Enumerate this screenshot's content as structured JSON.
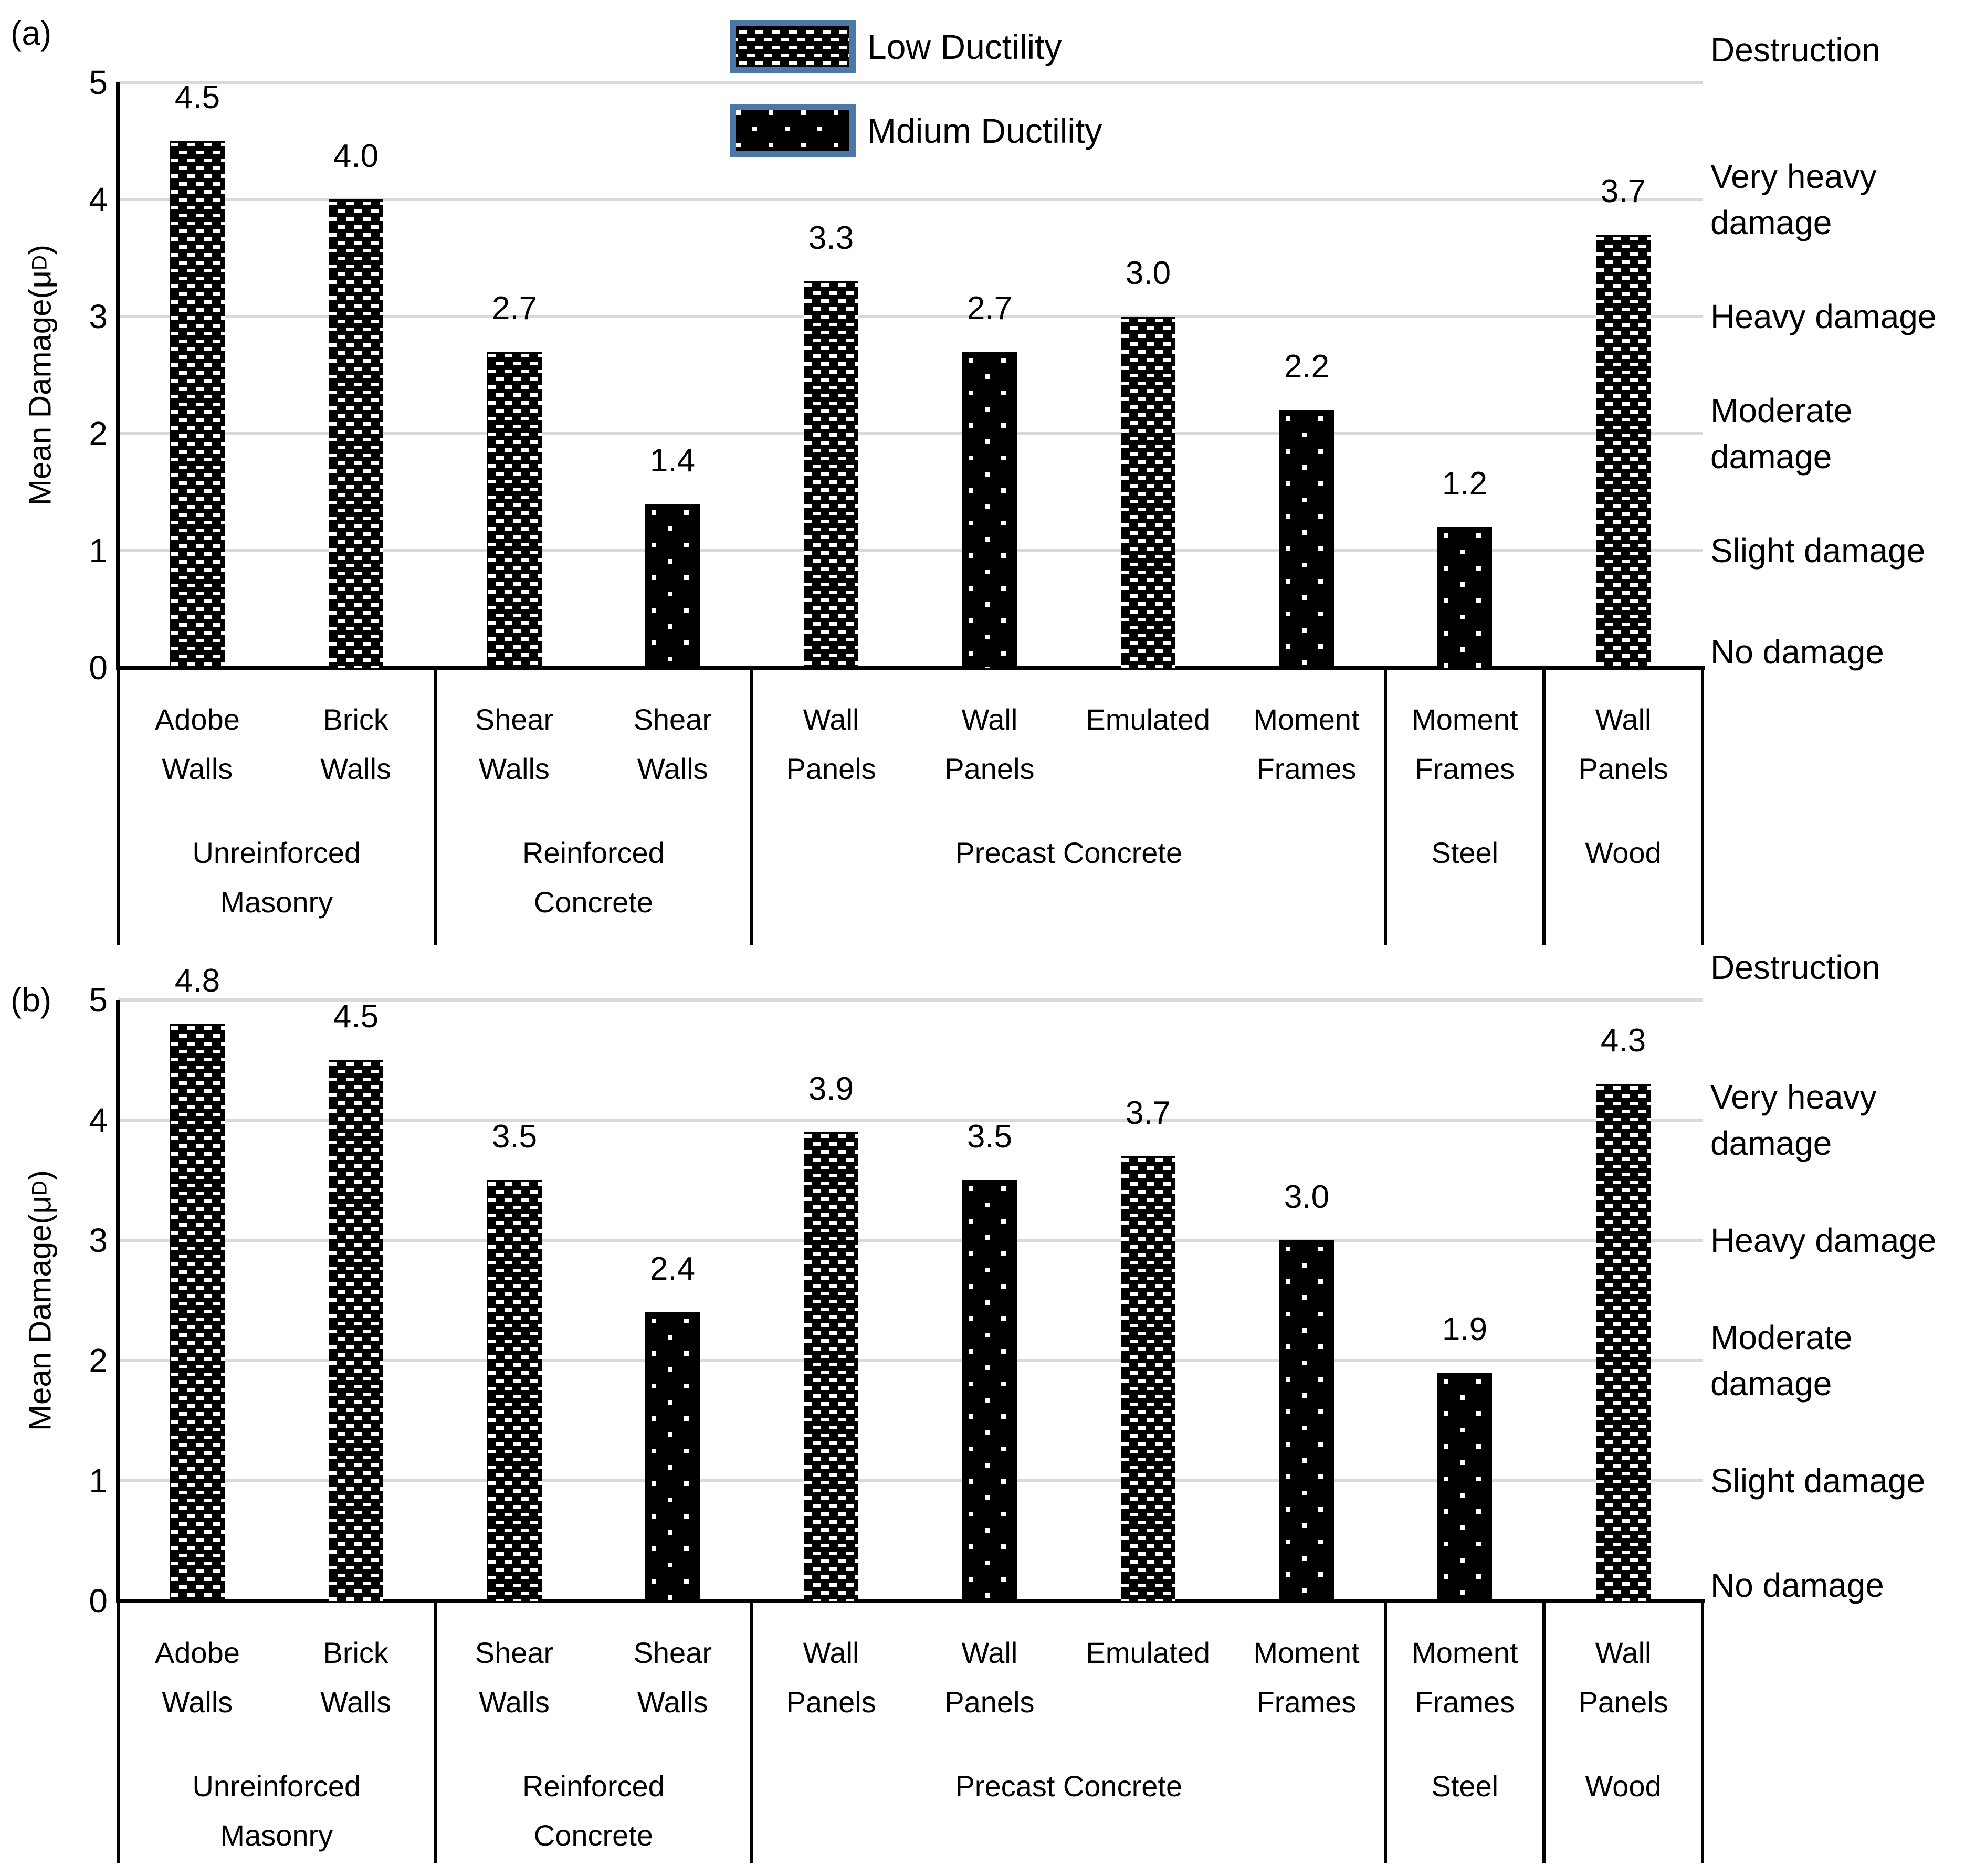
{
  "figure": {
    "y_axis": {
      "title_prefix": "Mean Damage(μ",
      "title_sub": "D",
      "title_suffix": ")",
      "ticks": [
        "0",
        "1",
        "2",
        "3",
        "4",
        "5"
      ],
      "max": 5
    },
    "legend": {
      "items": [
        {
          "label": "Low Ductility",
          "pattern": "checker"
        },
        {
          "label": "Mdium Ductility",
          "pattern": "dots"
        }
      ]
    },
    "damage_scale": [
      {
        "level": 5,
        "lines": [
          "Destruction"
        ]
      },
      {
        "level": 4,
        "lines": [
          "Very heavy",
          "damage"
        ]
      },
      {
        "level": 3,
        "lines": [
          "Heavy damage"
        ]
      },
      {
        "level": 2,
        "lines": [
          "Moderate",
          "damage"
        ]
      },
      {
        "level": 1,
        "lines": [
          "Slight damage"
        ]
      },
      {
        "level": 0,
        "lines": [
          "No damage"
        ]
      }
    ],
    "categories": [
      {
        "lines": [
          "Adobe",
          "Walls"
        ]
      },
      {
        "lines": [
          "Brick",
          "Walls"
        ]
      },
      {
        "lines": [
          "Shear",
          "Walls"
        ]
      },
      {
        "lines": [
          "Shear",
          "Walls"
        ]
      },
      {
        "lines": [
          "Wall",
          "Panels"
        ]
      },
      {
        "lines": [
          "Wall",
          "Panels"
        ]
      },
      {
        "lines": [
          "Emulated"
        ]
      },
      {
        "lines": [
          "Moment",
          "Frames"
        ]
      },
      {
        "lines": [
          "Moment",
          "Frames"
        ]
      },
      {
        "lines": [
          "Wall",
          "Panels"
        ]
      }
    ],
    "groups": [
      {
        "lines": [
          "Unreinforced",
          "Masonry"
        ],
        "span": 2
      },
      {
        "lines": [
          "Reinforced",
          "Concrete"
        ],
        "span": 2
      },
      {
        "lines": [
          "Precast Concrete"
        ],
        "span": 4
      },
      {
        "lines": [
          "Steel"
        ],
        "span": 1
      },
      {
        "lines": [
          "Wood"
        ],
        "span": 1
      }
    ],
    "panels": [
      {
        "tag": "(a)",
        "bars": [
          {
            "value": "4.5",
            "num": 4.5,
            "pattern": "checker"
          },
          {
            "value": "4.0",
            "num": 4.0,
            "pattern": "checker"
          },
          {
            "value": "2.7",
            "num": 2.7,
            "pattern": "checker"
          },
          {
            "value": "1.4",
            "num": 1.4,
            "pattern": "dots"
          },
          {
            "value": "3.3",
            "num": 3.3,
            "pattern": "checker"
          },
          {
            "value": "2.7",
            "num": 2.7,
            "pattern": "dots"
          },
          {
            "value": "3.0",
            "num": 3.0,
            "pattern": "checker"
          },
          {
            "value": "2.2",
            "num": 2.2,
            "pattern": "dots"
          },
          {
            "value": "1.2",
            "num": 1.2,
            "pattern": "dots"
          },
          {
            "value": "3.7",
            "num": 3.7,
            "pattern": "checker"
          }
        ]
      },
      {
        "tag": "(b)",
        "bars": [
          {
            "value": "4.8",
            "num": 4.8,
            "pattern": "checker"
          },
          {
            "value": "4.5",
            "num": 4.5,
            "pattern": "checker"
          },
          {
            "value": "3.5",
            "num": 3.5,
            "pattern": "checker"
          },
          {
            "value": "2.4",
            "num": 2.4,
            "pattern": "dots"
          },
          {
            "value": "3.9",
            "num": 3.9,
            "pattern": "checker"
          },
          {
            "value": "3.5",
            "num": 3.5,
            "pattern": "dots"
          },
          {
            "value": "3.7",
            "num": 3.7,
            "pattern": "checker"
          },
          {
            "value": "3.0",
            "num": 3.0,
            "pattern": "dots"
          },
          {
            "value": "1.9",
            "num": 1.9,
            "pattern": "dots"
          },
          {
            "value": "4.3",
            "num": 4.3,
            "pattern": "checker"
          }
        ]
      }
    ],
    "colors": {
      "gridline": "#d9d9d9",
      "axis": "#000000",
      "legend_border": "#4a78a8",
      "pattern_bg": "#000000",
      "pattern_fg": "#ffffff",
      "text": "#000000"
    }
  },
  "chart_data": [
    {
      "type": "bar",
      "title": "(a)",
      "ylabel": "Mean Damage(μD)",
      "ylim": [
        0,
        5
      ],
      "grid": "horizontal gridlines at integers, light gray",
      "legend": [
        "Low Ductility",
        "Mdium Ductility"
      ],
      "legend_position": "top-center, panel (a) only",
      "right_axis_labels": [
        "Destruction",
        "Very heavy damage",
        "Heavy damage",
        "Moderate damage",
        "Slight damage",
        "No damage"
      ],
      "categories": [
        "Adobe Walls",
        "Brick Walls",
        "Shear Walls",
        "Shear Walls",
        "Wall Panels",
        "Wall Panels",
        "Emulated",
        "Moment Frames",
        "Moment Frames",
        "Wall Panels"
      ],
      "category_groups": [
        "Unreinforced Masonry",
        "Unreinforced Masonry",
        "Reinforced Concrete",
        "Reinforced Concrete",
        "Precast Concrete",
        "Precast Concrete",
        "Precast Concrete",
        "Precast Concrete",
        "Steel",
        "Wood"
      ],
      "series_ductility": [
        "Low",
        "Low",
        "Low",
        "Medium",
        "Low",
        "Medium",
        "Low",
        "Medium",
        "Medium",
        "Low"
      ],
      "values": [
        4.5,
        4.0,
        2.7,
        1.4,
        3.3,
        2.7,
        3.0,
        2.2,
        1.2,
        3.7
      ]
    },
    {
      "type": "bar",
      "title": "(b)",
      "ylabel": "Mean Damage(μD)",
      "ylim": [
        0,
        5
      ],
      "grid": "horizontal gridlines at integers, light gray",
      "legend": [
        "Low Ductility",
        "Mdium Ductility"
      ],
      "legend_position": "none (shared with panel a)",
      "right_axis_labels": [
        "Destruction",
        "Very heavy damage",
        "Heavy damage",
        "Moderate damage",
        "Slight damage",
        "No damage"
      ],
      "categories": [
        "Adobe Walls",
        "Brick Walls",
        "Shear Walls",
        "Shear Walls",
        "Wall Panels",
        "Wall Panels",
        "Emulated",
        "Moment Frames",
        "Moment Frames",
        "Wall Panels"
      ],
      "category_groups": [
        "Unreinforced Masonry",
        "Unreinforced Masonry",
        "Reinforced Concrete",
        "Reinforced Concrete",
        "Precast Concrete",
        "Precast Concrete",
        "Precast Concrete",
        "Precast Concrete",
        "Steel",
        "Wood"
      ],
      "series_ductility": [
        "Low",
        "Low",
        "Low",
        "Medium",
        "Low",
        "Medium",
        "Low",
        "Medium",
        "Medium",
        "Low"
      ],
      "values": [
        4.8,
        4.5,
        3.5,
        2.4,
        3.9,
        3.5,
        3.7,
        3.0,
        1.9,
        4.3
      ]
    }
  ]
}
